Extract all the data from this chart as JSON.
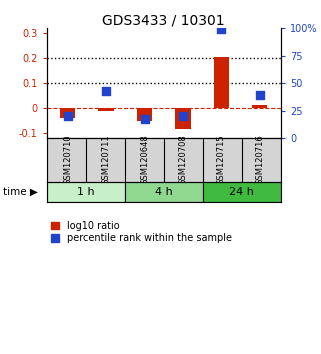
{
  "title": "GDS3433 / 10301",
  "samples": [
    "GSM120710",
    "GSM120711",
    "GSM120648",
    "GSM120708",
    "GSM120715",
    "GSM120716"
  ],
  "log10_ratio": [
    -0.04,
    -0.012,
    -0.05,
    -0.085,
    0.205,
    0.013
  ],
  "percentile_rank_right": [
    20,
    43,
    17,
    20,
    99,
    39
  ],
  "time_groups": [
    {
      "label": "1 h",
      "span": [
        0,
        2
      ],
      "color": "#c8f0c8"
    },
    {
      "label": "4 h",
      "span": [
        2,
        4
      ],
      "color": "#90d890"
    },
    {
      "label": "24 h",
      "span": [
        4,
        6
      ],
      "color": "#40bb40"
    }
  ],
  "bar_color": "#cc2200",
  "dot_color": "#2244cc",
  "ylim_left": [
    -0.12,
    0.32
  ],
  "yticks_left": [
    -0.1,
    0.0,
    0.1,
    0.2,
    0.3
  ],
  "yticks_right": [
    0,
    25,
    50,
    75,
    100
  ],
  "hlines": [
    0.1,
    0.2
  ],
  "zero_line_color": "#cc2200",
  "background_color": "#ffffff",
  "plot_bg": "#ffffff",
  "bar_width": 0.4,
  "dot_size": 28,
  "title_fontsize": 10,
  "tick_fontsize": 7,
  "legend_fontsize": 7,
  "time_label_fontsize": 8,
  "sample_label_fontsize": 6
}
